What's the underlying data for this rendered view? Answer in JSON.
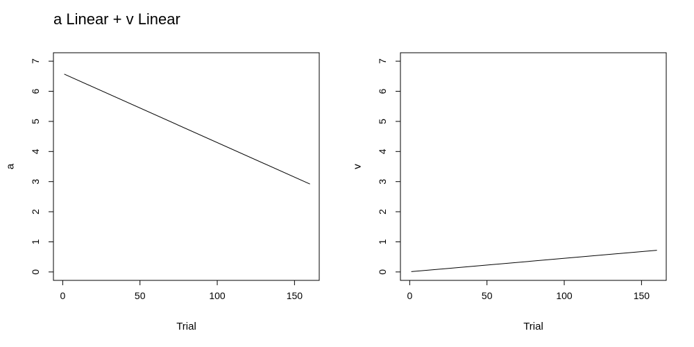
{
  "title": "a Linear + v Linear",
  "chart_data": [
    {
      "type": "line",
      "xlabel": "Trial",
      "ylabel": "a",
      "xlim": [
        -6,
        166
      ],
      "ylim": [
        -0.28,
        7.28
      ],
      "xticks": [
        0,
        50,
        100,
        150
      ],
      "yticks": [
        0,
        1,
        2,
        3,
        4,
        5,
        6,
        7
      ],
      "x": [
        1,
        160
      ],
      "y": [
        6.57,
        2.92
      ]
    },
    {
      "type": "line",
      "xlabel": "Trial",
      "ylabel": "v",
      "xlim": [
        -6,
        166
      ],
      "ylim": [
        -0.28,
        7.28
      ],
      "xticks": [
        0,
        50,
        100,
        150
      ],
      "yticks": [
        0,
        1,
        2,
        3,
        4,
        5,
        6,
        7
      ],
      "x": [
        1,
        160
      ],
      "y": [
        0.01,
        0.72
      ]
    }
  ]
}
